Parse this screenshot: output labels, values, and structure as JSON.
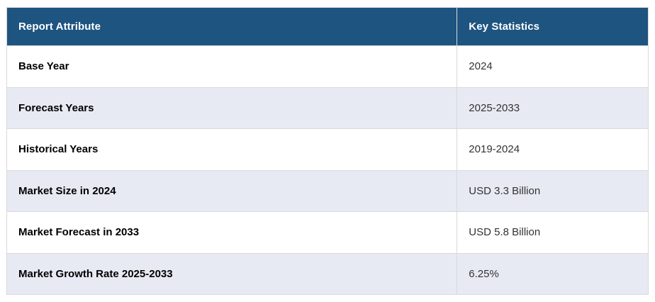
{
  "chart_data": {
    "type": "table",
    "title": "",
    "columns": [
      "Report Attribute",
      "Key Statistics"
    ],
    "rows": [
      [
        "Base Year",
        "2024"
      ],
      [
        "Forecast Years",
        "2025-2033"
      ],
      [
        "Historical Years",
        "2019-2024"
      ],
      [
        "Market Size in 2024",
        "USD 3.3 Billion"
      ],
      [
        "Market Forecast in 2033",
        "USD 5.8 Billion"
      ],
      [
        "Market Growth Rate 2025-2033",
        "6.25%"
      ]
    ]
  },
  "colors": {
    "header_bg": "#1e5480",
    "header_text": "#ffffff",
    "row_bg": "#ffffff",
    "zebra_row_bg": "#e8eaf3",
    "cell_border": "#d9d9de",
    "attribute_text": "#000000",
    "value_text": "#333333"
  }
}
